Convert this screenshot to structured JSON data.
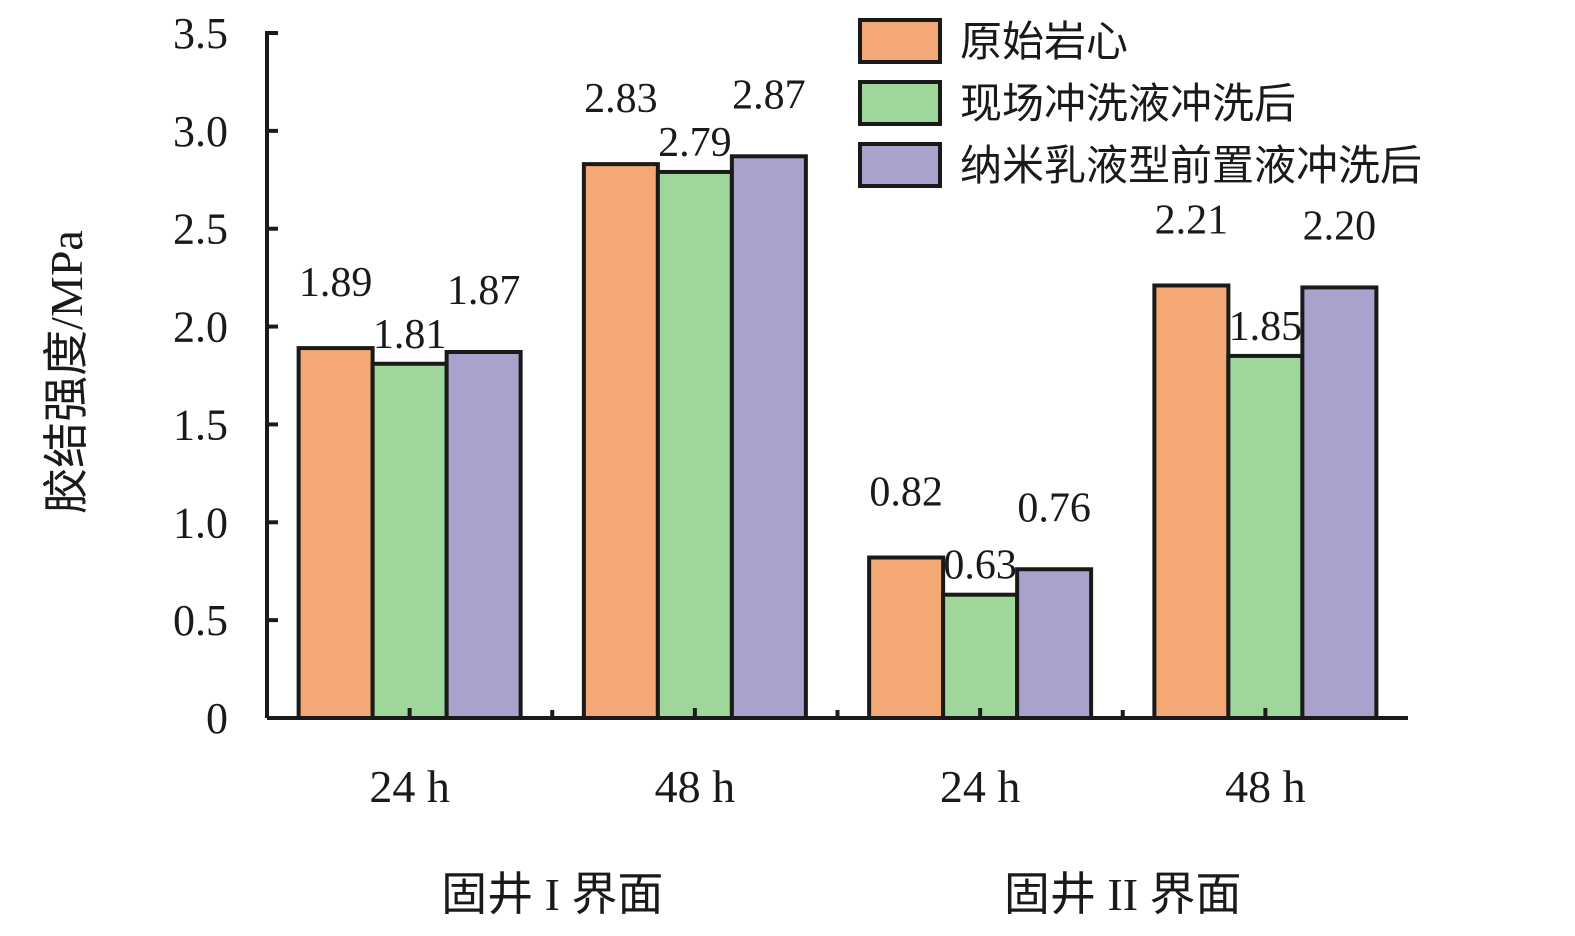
{
  "chart_data": {
    "type": "bar",
    "ylabel": "胶结强度/MPa",
    "xlabel": "",
    "ylim": [
      0,
      3.5
    ],
    "yticks": [
      "0",
      "0.5",
      "1.0",
      "1.5",
      "2.0",
      "2.5",
      "3.0",
      "3.5"
    ],
    "categories": [
      "24 h",
      "48 h",
      "24 h",
      "48 h"
    ],
    "groups": [
      {
        "label": "固井 I 界面",
        "categories": [
          0,
          1
        ]
      },
      {
        "label": "固井 II 界面",
        "categories": [
          2,
          3
        ]
      }
    ],
    "series": [
      {
        "name": "原始岩心",
        "color": "#f4a876",
        "values": [
          1.89,
          2.83,
          0.82,
          2.21
        ],
        "labels": [
          "1.89",
          "2.83",
          "0.82",
          "2.21"
        ]
      },
      {
        "name": "现场冲洗液冲洗后",
        "color": "#9fd79a",
        "values": [
          1.81,
          2.79,
          0.63,
          1.85
        ],
        "labels": [
          "1.81",
          "2.79",
          "0.63",
          "1.85"
        ]
      },
      {
        "name": "纳米乳液型前置液冲洗后",
        "color": "#a9a2cd",
        "values": [
          1.87,
          2.87,
          0.76,
          2.2
        ],
        "labels": [
          "1.87",
          "2.87",
          "0.76",
          "2.20"
        ]
      }
    ],
    "legend": "top-right",
    "grid": false
  }
}
